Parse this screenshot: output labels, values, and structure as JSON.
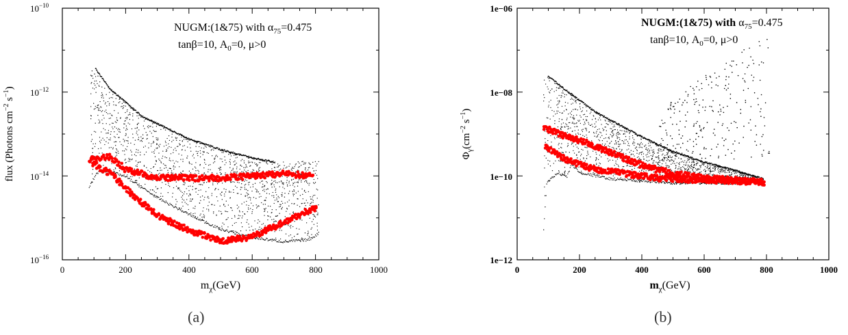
{
  "chart_data": [
    {
      "id": "a",
      "type": "scatter",
      "log_y": true,
      "xlim": [
        0,
        1000
      ],
      "ylim_exp": [
        -16,
        -10
      ],
      "x_ticks": [
        "0",
        "200",
        "400",
        "600",
        "800",
        "1000"
      ],
      "y_ticks": [
        {
          "base": "10",
          "exp": "−10"
        },
        {
          "base": "10",
          "exp": "−12"
        },
        {
          "base": "10",
          "exp": "−14"
        },
        {
          "base": "10",
          "exp": "−16"
        }
      ],
      "xlabel_main": "m",
      "xlabel_sub": "χ",
      "xlabel_tail": "(GeV)",
      "ylabel_pre": "flux (Photons cm",
      "ylabel_sup1": "−2",
      "ylabel_mid": " s",
      "ylabel_sup2": "−1",
      "ylabel_post": ")",
      "annotation_1_pre": "NUGM:(1&75) with α",
      "annotation_1_sub": "75",
      "annotation_1_post": "=0.475",
      "annotation_2_pre": "tanβ=10, A",
      "annotation_2_sub": "0",
      "annotation_2_post": "=0, μ>0",
      "caption": "(a)",
      "series": [
        {
          "color": "#000000",
          "upper_edge": [
            [
              105,
              -11.42
            ],
            [
              150,
              -11.9
            ],
            [
              250,
              -12.55
            ],
            [
              400,
              -13.1
            ],
            [
              500,
              -13.35
            ],
            [
              600,
              -13.55
            ],
            [
              670,
              -13.65
            ]
          ],
          "lower_edge": [
            [
              85,
              -14.3
            ],
            [
              110,
              -13.95
            ],
            [
              150,
              -13.92
            ],
            [
              200,
              -14.05
            ],
            [
              300,
              -14.55
            ],
            [
              400,
              -14.95
            ],
            [
              500,
              -15.3
            ],
            [
              600,
              -15.5
            ],
            [
              700,
              -15.6
            ],
            [
              780,
              -15.55
            ],
            [
              810,
              -15.4
            ]
          ]
        },
        {
          "color": "#ff0000",
          "bands": [
            [
              [
                85,
                -13.6
              ],
              [
                150,
                -13.55
              ],
              [
                200,
                -13.85
              ],
              [
                300,
                -14.05
              ],
              [
                400,
                -14.05
              ],
              [
                500,
                -14.05
              ],
              [
                600,
                -14.0
              ],
              [
                700,
                -13.95
              ],
              [
                790,
                -14.0
              ]
            ],
            [
              [
                95,
                -13.7
              ],
              [
                160,
                -14.0
              ],
              [
                220,
                -14.45
              ],
              [
                300,
                -14.95
              ],
              [
                400,
                -15.3
              ],
              [
                500,
                -15.55
              ],
              [
                600,
                -15.45
              ],
              [
                700,
                -15.1
              ],
              [
                800,
                -14.75
              ]
            ]
          ]
        }
      ]
    },
    {
      "id": "b",
      "type": "scatter",
      "log_y": true,
      "xlim": [
        0,
        1000
      ],
      "ylim_exp": [
        -12,
        -6
      ],
      "x_ticks": [
        "0",
        "200",
        "400",
        "600",
        "800",
        "1000"
      ],
      "y_ticks": [
        "1e−06",
        "1e−08",
        "1e−10",
        "1e−12"
      ],
      "xlabel_main": "m",
      "xlabel_sub": "χ",
      "xlabel_tail": "(GeV)",
      "ylabel_pre": "Φ",
      "ylabel_sub": "γ",
      "ylabel_mid": "(cm",
      "ylabel_sup1": "−2",
      "ylabel_mid2": " s",
      "ylabel_sup2": "−1",
      "ylabel_post": ")",
      "annotation_1_pre": "NUGM:(1&75) with",
      "annotation_1_mid": " α",
      "annotation_1_sub": "75",
      "annotation_1_post": "=0.475",
      "annotation_2_pre": "tanβ=10, A",
      "annotation_2_sub": "0",
      "annotation_2_post": "=0, μ>0",
      "caption": "(b)",
      "series": [
        {
          "color": "#000000",
          "upper_edge": [
            [
              100,
              -7.6
            ],
            [
              150,
              -7.9
            ],
            [
              250,
              -8.45
            ],
            [
              400,
              -9.05
            ],
            [
              500,
              -9.4
            ],
            [
              600,
              -9.65
            ],
            [
              700,
              -9.85
            ],
            [
              790,
              -10.05
            ]
          ],
          "lower_edge": [
            [
              85,
              -11.3
            ],
            [
              95,
              -10.2
            ],
            [
              130,
              -9.95
            ],
            [
              160,
              -10.05
            ],
            [
              175,
              -9.75
            ],
            [
              200,
              -9.95
            ],
            [
              300,
              -10.1
            ],
            [
              400,
              -10.15
            ],
            [
              500,
              -10.2
            ],
            [
              600,
              -10.2
            ],
            [
              700,
              -10.2
            ],
            [
              790,
              -10.15
            ]
          ]
        },
        {
          "color": "#ff0000",
          "bands": [
            [
              [
                85,
                -8.85
              ],
              [
                150,
                -9.05
              ],
              [
                200,
                -9.15
              ],
              [
                300,
                -9.45
              ],
              [
                400,
                -9.75
              ],
              [
                500,
                -9.95
              ],
              [
                600,
                -10.05
              ],
              [
                700,
                -10.1
              ],
              [
                790,
                -10.15
              ]
            ],
            [
              [
                90,
                -9.3
              ],
              [
                150,
                -9.6
              ],
              [
                250,
                -9.85
              ],
              [
                350,
                -9.95
              ],
              [
                450,
                -10.05
              ],
              [
                600,
                -10.1
              ],
              [
                700,
                -10.12
              ],
              [
                790,
                -10.15
              ]
            ]
          ]
        },
        {
          "color": "#000000",
          "scatter_region": {
            "x": [
              450,
              810
            ],
            "y_top_exp": -6.4,
            "y_bottom_exp": -9.6
          }
        }
      ]
    }
  ]
}
